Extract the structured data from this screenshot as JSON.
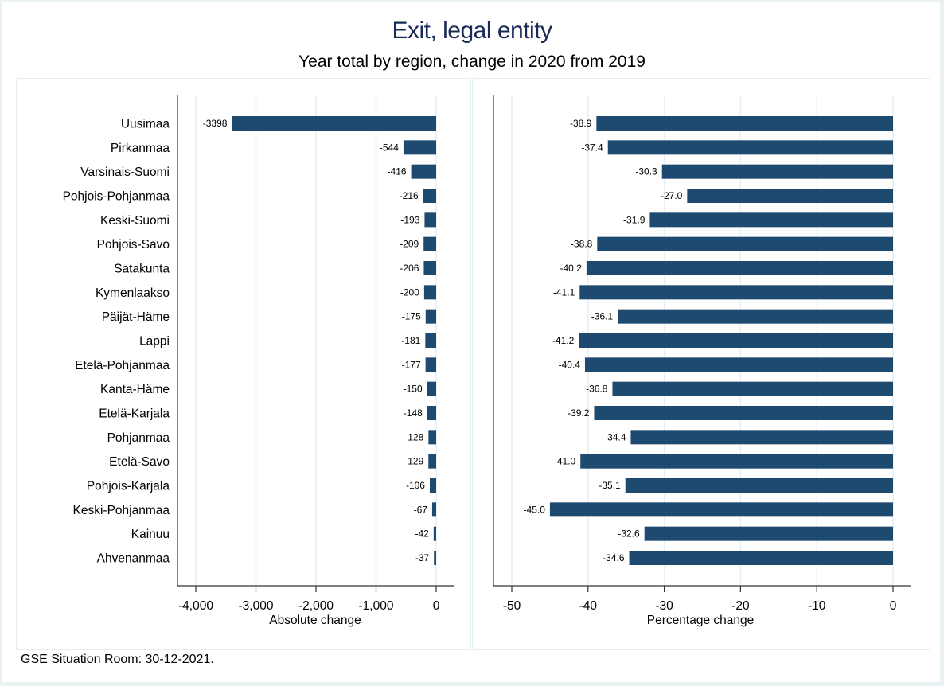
{
  "chart_data": [
    {
      "type": "bar",
      "orientation": "horizontal",
      "panel": "left",
      "title": "Exit, legal entity",
      "subtitle": "Year total by region, change in 2020 from 2019",
      "xlabel": "Absolute change",
      "ylabel": "",
      "xlim": [
        -4000,
        0
      ],
      "xticks": [
        -4000,
        -3000,
        -2000,
        -1000,
        0
      ],
      "xtick_labels": [
        "-4,000",
        "-3,000",
        "-2,000",
        "-1,000",
        "0"
      ],
      "grid": "vertical",
      "categories": [
        "Uusimaa",
        "Pirkanmaa",
        "Varsinais-Suomi",
        "Pohjois-Pohjanmaa",
        "Keski-Suomi",
        "Pohjois-Savo",
        "Satakunta",
        "Kymenlaakso",
        "Päijät-Häme",
        "Lappi",
        "Etelä-Pohjanmaa",
        "Kanta-Häme",
        "Etelä-Karjala",
        "Pohjanmaa",
        "Etelä-Savo",
        "Pohjois-Karjala",
        "Keski-Pohjanmaa",
        "Kainuu",
        "Ahvenanmaa"
      ],
      "values": [
        -3398,
        -544,
        -416,
        -216,
        -193,
        -209,
        -206,
        -200,
        -175,
        -181,
        -177,
        -150,
        -148,
        -128,
        -129,
        -106,
        -67,
        -42,
        -37
      ],
      "value_labels": [
        "-3398",
        "-544",
        "-416",
        "-216",
        "-193",
        "-209",
        "-206",
        "-200",
        "-175",
        "-181",
        "-177",
        "-150",
        "-148",
        "-128",
        "-129",
        "-106",
        "-67",
        "-42",
        "-37"
      ],
      "bar_color": "#1f4a70"
    },
    {
      "type": "bar",
      "orientation": "horizontal",
      "panel": "right",
      "xlabel": "Percentage change",
      "ylabel": "",
      "xlim": [
        -50,
        0
      ],
      "xticks": [
        -50,
        -40,
        -30,
        -20,
        -10,
        0
      ],
      "xtick_labels": [
        "-50",
        "-40",
        "-30",
        "-20",
        "-10",
        "0"
      ],
      "grid": "vertical",
      "categories": [
        "Uusimaa",
        "Pirkanmaa",
        "Varsinais-Suomi",
        "Pohjois-Pohjanmaa",
        "Keski-Suomi",
        "Pohjois-Savo",
        "Satakunta",
        "Kymenlaakso",
        "Päijät-Häme",
        "Lappi",
        "Etelä-Pohjanmaa",
        "Kanta-Häme",
        "Etelä-Karjala",
        "Pohjanmaa",
        "Etelä-Savo",
        "Pohjois-Karjala",
        "Keski-Pohjanmaa",
        "Kainuu",
        "Ahvenanmaa"
      ],
      "values": [
        -38.9,
        -37.4,
        -30.3,
        -27.0,
        -31.9,
        -38.8,
        -40.2,
        -41.1,
        -36.1,
        -41.2,
        -40.4,
        -36.8,
        -39.2,
        -34.4,
        -41.0,
        -35.1,
        -45.0,
        -32.6,
        -34.6
      ],
      "value_labels": [
        "-38.9",
        "-37.4",
        "-30.3",
        "-27.0",
        "-31.9",
        "-38.8",
        "-40.2",
        "-41.1",
        "-36.1",
        "-41.2",
        "-40.4",
        "-36.8",
        "-39.2",
        "-34.4",
        "-41.0",
        "-35.1",
        "-45.0",
        "-32.6",
        "-34.6"
      ],
      "bar_color": "#1f4a70"
    }
  ],
  "header": {
    "title": "Exit, legal entity",
    "subtitle": "Year total by region, change in 2020 from 2019"
  },
  "footer": {
    "note": "GSE Situation Room: 30-12-2021."
  },
  "colors": {
    "title": "#1a2a56",
    "bar": "#1f4a70",
    "grid": "#e6eff1",
    "background": "#eaf2f3"
  }
}
